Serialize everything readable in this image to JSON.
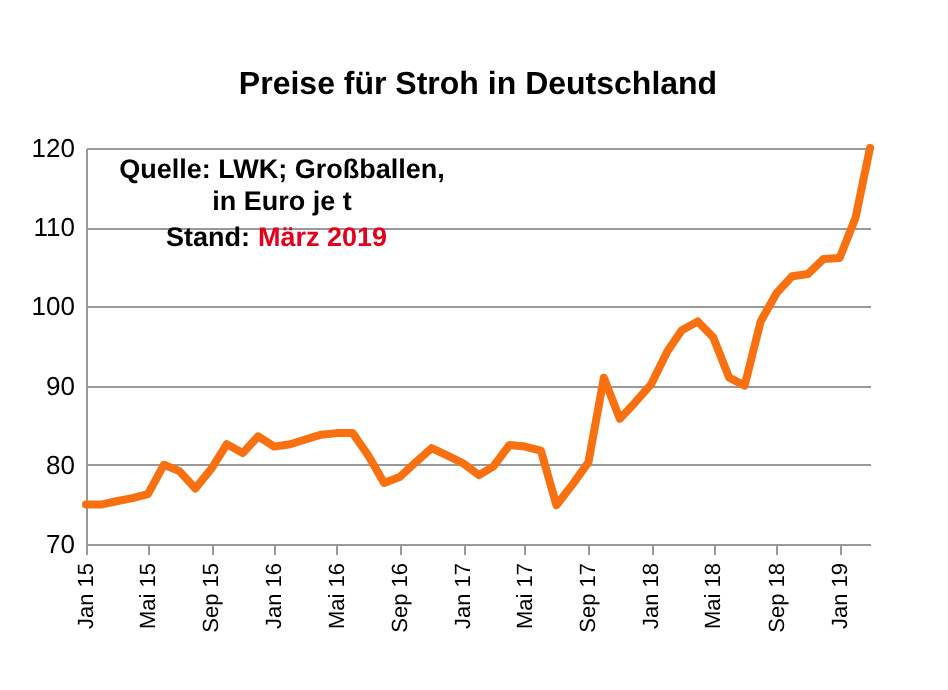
{
  "chart_data": {
    "type": "line",
    "title": "Preise für Stroh in Deutschland",
    "annotations": [
      "Quelle: LWK; Großballen,",
      "in Euro je t",
      "Stand:",
      "März 2019"
    ],
    "x": [
      "2015-01",
      "2015-02",
      "2015-03",
      "2015-04",
      "2015-05",
      "2015-06",
      "2015-07",
      "2015-08",
      "2015-09",
      "2015-10",
      "2015-11",
      "2015-12",
      "2016-01",
      "2016-02",
      "2016-03",
      "2016-04",
      "2016-05",
      "2016-06",
      "2016-07",
      "2016-08",
      "2016-09",
      "2016-10",
      "2016-11",
      "2016-12",
      "2017-01",
      "2017-02",
      "2017-03",
      "2017-04",
      "2017-05",
      "2017-06",
      "2017-07",
      "2017-08",
      "2017-09",
      "2017-10",
      "2017-11",
      "2017-12",
      "2018-01",
      "2018-02",
      "2018-03",
      "2018-04",
      "2018-05",
      "2018-06",
      "2018-07",
      "2018-08",
      "2018-09",
      "2018-10",
      "2018-11",
      "2018-12",
      "2019-01",
      "2019-02",
      "2019-03"
    ],
    "series": [
      {
        "color": "#f8700f",
        "values": [
          75,
          75,
          75.4,
          75.8,
          76.3,
          80,
          79.2,
          77,
          79.5,
          82.6,
          81.5,
          83.6,
          82.3,
          82.6,
          83.2,
          83.8,
          84,
          84,
          81.2,
          77.7,
          78.5,
          80.3,
          82.1,
          81.2,
          80.2,
          78.7,
          79.8,
          82.5,
          82.3,
          81.8,
          74.9,
          77.5,
          80.3,
          91,
          85.8,
          87.9,
          90.2,
          94.3,
          97,
          98.1,
          96.1,
          91,
          90,
          98.1,
          101.7,
          103.8,
          104.1,
          106,
          106.1,
          111.2,
          120
        ]
      }
    ],
    "xlim": [
      "2015-01",
      "2019-03"
    ],
    "xticks": [
      {
        "value": "2015-01",
        "label": "Jan 15"
      },
      {
        "value": "2015-05",
        "label": "Mai 15"
      },
      {
        "value": "2015-09",
        "label": "Sep 15"
      },
      {
        "value": "2016-01",
        "label": "Jan 16"
      },
      {
        "value": "2016-05",
        "label": "Mai 16"
      },
      {
        "value": "2016-09",
        "label": "Sep 16"
      },
      {
        "value": "2017-01",
        "label": "Jan 17"
      },
      {
        "value": "2017-05",
        "label": "Mai 17"
      },
      {
        "value": "2017-09",
        "label": "Sep 17"
      },
      {
        "value": "2018-01",
        "label": "Jan 18"
      },
      {
        "value": "2018-05",
        "label": "Mai 18"
      },
      {
        "value": "2018-09",
        "label": "Sep 18"
      },
      {
        "value": "2019-01",
        "label": "Jan 19"
      }
    ],
    "ylim": [
      70,
      120
    ],
    "yticks": [
      70,
      80,
      90,
      100,
      110,
      120
    ],
    "grid": "y",
    "line_style": "solid"
  }
}
